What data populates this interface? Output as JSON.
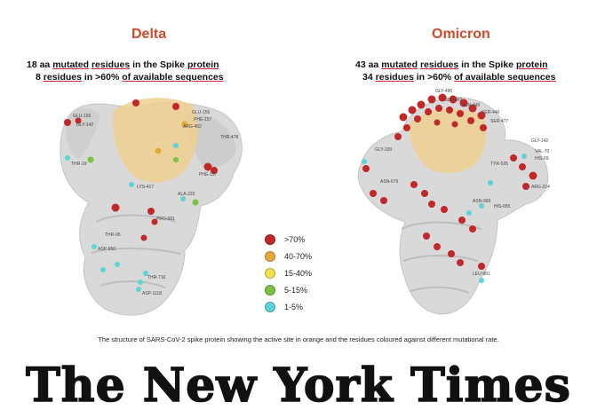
{
  "delta": {
    "title": "Delta",
    "line1_pre": "18 aa ",
    "line1_u1": "mutated",
    "line1_mid": " ",
    "line1_u2": "residues",
    "line1_mid2": " in the Spike ",
    "line1_u3": "protein",
    "line2_pre": "8 ",
    "line2_u1": "residues",
    "line2_mid": " in >60% ",
    "line2_u2": "of available sequences",
    "residue_labels": [
      "GLU-156",
      "GLY-142",
      "THR-478",
      "GLU-156",
      "PHE-157",
      "THR-19",
      "ALA-222",
      "PHE-157",
      "ARG-452",
      "LYS-417",
      "PRO-681",
      "ASP-950",
      "THR-95",
      "ASP-1118",
      "THR-716"
    ]
  },
  "omicron": {
    "title": "Omicron",
    "line1_pre": "43 aa ",
    "line1_u1": "mutated",
    "line1_mid": " ",
    "line1_u2": "residues",
    "line1_mid2": " in the Spike ",
    "line1_u3": "protein",
    "line2_pre": "34 ",
    "line2_u1": "residues",
    "line2_mid": " in >60% ",
    "line2_u2": "of available sequences",
    "residue_labels": [
      "GLY-496",
      "GLN-493",
      "SER-446",
      "ASN-440",
      "GLY-339",
      "SER-477",
      "GLY-142",
      "VAL-70",
      "HIS-69",
      "ARG-214",
      "TYR-505",
      "ASN-969",
      "HIS-655",
      "ASN-679",
      "LEU-981"
    ]
  },
  "legend": [
    {
      "label": ">70%",
      "color": "#c0282a"
    },
    {
      "label": "40-70%",
      "color": "#e5a93a"
    },
    {
      "label": "15-40%",
      "color": "#f2e24a"
    },
    {
      "label": "5-15%",
      "color": "#7dc142"
    },
    {
      "label": "1-5%",
      "color": "#5fd3da"
    }
  ],
  "caption": "The structure of SARS-CoV-2 spike protein showing the active site in orange and the residues coloured against different mutational rate.",
  "masthead": "The New York Times",
  "colors": {
    "title": "#d24a2a",
    "protein": "#d9d9d9",
    "active_site": "#efcf8e"
  }
}
